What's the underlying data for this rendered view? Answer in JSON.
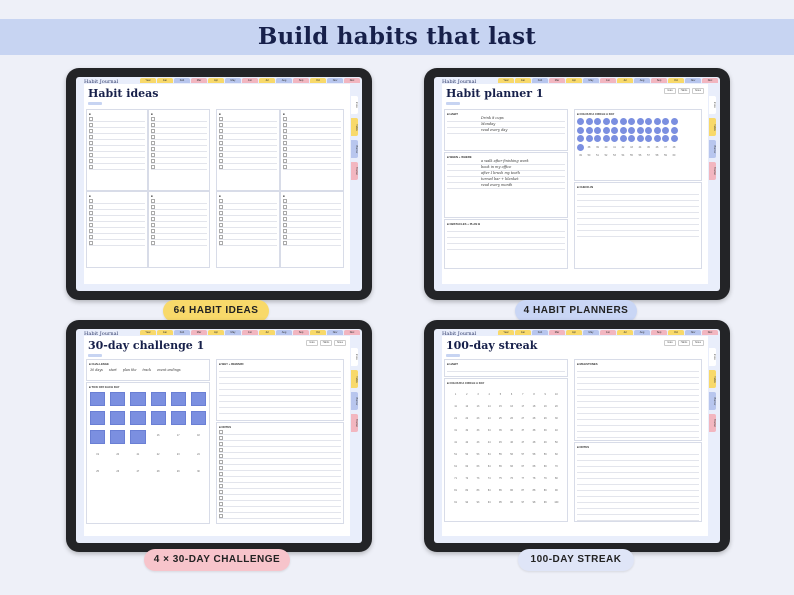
{
  "banner": {
    "title": "Build habits that last"
  },
  "common": {
    "brand": "Habit Journal",
    "months": [
      "Year",
      "Jan",
      "Feb",
      "Mar",
      "Apr",
      "May",
      "Jun",
      "Jul",
      "Aug",
      "Sep",
      "Oct",
      "Nov",
      "Dec"
    ],
    "month_colors": [
      "#f8d96a",
      "#f8d96a",
      "#b8c6ee",
      "#f2b6c0",
      "#f8d96a",
      "#b8c6ee",
      "#f2b6c0",
      "#f8d96a",
      "#b8c6ee",
      "#f2b6c0",
      "#f8d96a",
      "#b8c6ee",
      "#f2b6c0"
    ],
    "side_tabs": [
      "Index",
      "Habits",
      "Planner",
      "Tracker"
    ],
    "page_tabs": [
      "Index",
      "Habits",
      "Notes"
    ]
  },
  "panels": {
    "ideas": {
      "title": "Habit ideas",
      "label": "64 HABIT IDEAS",
      "color": "#f8d96a"
    },
    "planner": {
      "title": "Habit planner 1",
      "label": "4 HABIT PLANNERS",
      "color": "#c9d6f5",
      "entries": [
        "Drink 8 cups",
        "Monday",
        "read every day",
        "a walk after finishing work",
        "book in my office",
        "after I brush my teeth",
        "turned bar + blanket",
        "read every month"
      ]
    },
    "challenge": {
      "title": "30-day challenge 1",
      "label": "4 × 30-DAY CHALLENGE",
      "color": "#f7c4cb",
      "entries": [
        "30 days",
        "start",
        "plan the",
        "track",
        "event endings"
      ]
    },
    "streak": {
      "title": "100-day streak",
      "label": "100-DAY STREAK",
      "color": "#dfe5f7"
    }
  }
}
